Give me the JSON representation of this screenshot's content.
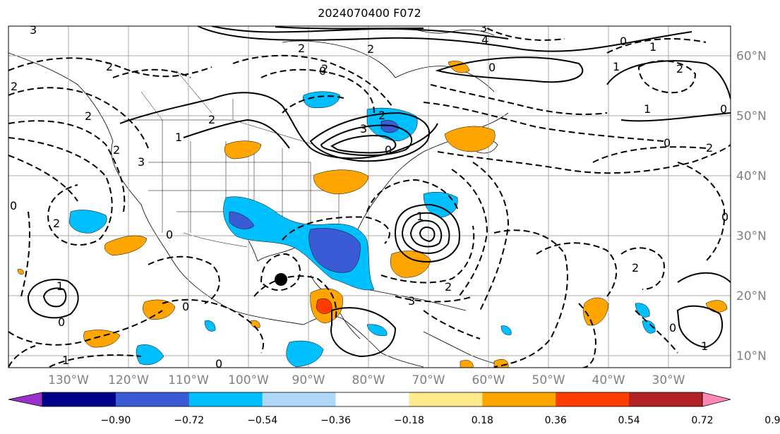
{
  "title": "2024070400 F072",
  "lon_labels": [
    "130°W",
    "120°W",
    "110°W",
    "100°W",
    "90°W",
    "80°W",
    "70°W",
    "60°W",
    "50°W",
    "40°W",
    "30°W"
  ],
  "lat_labels": [
    "60°N",
    "50°N",
    "40°N",
    "30°N",
    "20°N",
    "10°N"
  ],
  "colorbar": {
    "ticks": [
      "−0.90",
      "−0.72",
      "−0.54",
      "−0.36",
      "−0.18",
      "0.18",
      "0.36",
      "0.54",
      "0.72",
      "0.90"
    ],
    "colors": [
      "#9932cc",
      "#00008b",
      "#3b5bd6",
      "#00bfff",
      "#add8f8",
      "#ffffff",
      "#ffe98a",
      "#ffa500",
      "#ff3d00",
      "#b22222",
      "#ff88b4"
    ]
  },
  "contour_labels": [
    {
      "text": "3"
    },
    {
      "text": "2"
    },
    {
      "text": "2"
    },
    {
      "text": "3"
    },
    {
      "text": "4"
    },
    {
      "text": "0"
    },
    {
      "text": "0"
    },
    {
      "text": "1"
    },
    {
      "text": "1"
    },
    {
      "text": "2"
    },
    {
      "text": "2"
    },
    {
      "text": "0"
    },
    {
      "text": "2"
    },
    {
      "text": "2"
    },
    {
      "text": "3"
    },
    {
      "text": "2"
    },
    {
      "text": "1"
    },
    {
      "text": "2"
    },
    {
      "text": "0"
    },
    {
      "text": "2"
    },
    {
      "text": "3"
    },
    {
      "text": "2"
    },
    {
      "text": "0"
    },
    {
      "text": "1"
    },
    {
      "text": "2"
    },
    {
      "text": "0"
    },
    {
      "text": "0"
    },
    {
      "text": "1"
    },
    {
      "text": "0"
    },
    {
      "text": "0"
    },
    {
      "text": "1"
    },
    {
      "text": "0"
    },
    {
      "text": "2"
    },
    {
      "text": "1"
    },
    {
      "text": "0"
    },
    {
      "text": "2"
    },
    {
      "text": "2"
    },
    {
      "text": "1"
    },
    {
      "text": "0"
    },
    {
      "text": "0"
    },
    {
      "text": "3"
    }
  ],
  "colors": {
    "frame": "#000000",
    "grid": "#aaaaaa",
    "tick_label": "#808080",
    "marker": "#000000"
  }
}
